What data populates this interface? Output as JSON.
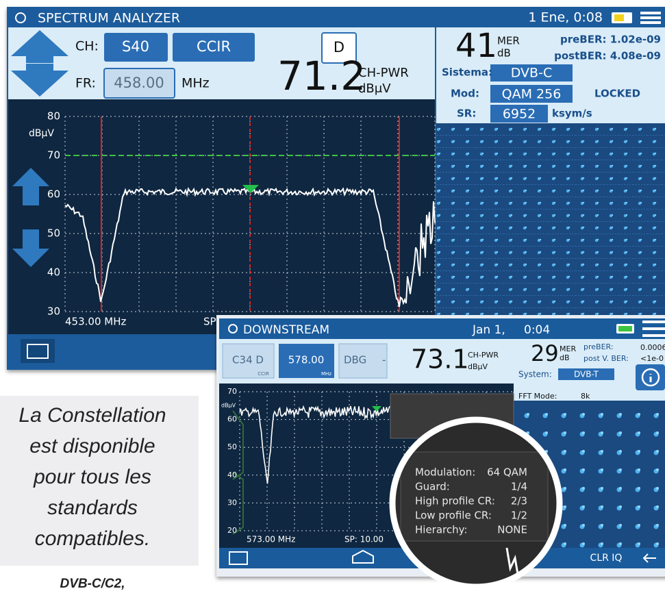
{
  "screen1": {
    "title": "SPECTRUM ANALYZER",
    "datetime": "1 Ene, 0:08",
    "ch_label": "CH:",
    "ch": "S40",
    "plan": "CCIR",
    "fr_label": "FR:",
    "fr": "458.00",
    "fr_unit": "MHz",
    "d": "D",
    "ch_pwr": "71.2",
    "ch_pwr_label": "CH-PWR",
    "ch_pwr_unit": "dBμV",
    "mer": "41",
    "mer_label": "MER",
    "mer_unit": "dB",
    "preber": "preBER: 1.02e-09",
    "postber": "postBER: 4.08e-09",
    "sistema_label": "Sistema:",
    "sistema": "DVB-C",
    "mod_label": "Mod:",
    "mod": "QAM 256",
    "locked": "LOCKED",
    "sr_label": "SR:",
    "sr": "6952",
    "sr_unit": "ksym/s",
    "y_unit": "dBμV",
    "yticks": [
      "80",
      "70",
      "60",
      "50",
      "40",
      "30"
    ],
    "start": "453.00 MHz",
    "sp": "SP"
  },
  "screen2": {
    "title": "DOWNSTREAM",
    "date": "Jan 1,",
    "time": "0:04",
    "ch": "C34 D",
    "ch_sub": "CCIR",
    "fr": "578.00",
    "fr_unit": "MHz",
    "dbg": "DBG",
    "dbg_value": "-",
    "ch_pwr": "73.1",
    "ch_pwr_label": "CH-PWR",
    "ch_pwr_unit": "dBμV",
    "mer": "29",
    "mer_label": "MER",
    "mer_unit": "dB",
    "preber_label": "preBER:",
    "preber": "0.0006",
    "postber_label": "post V. BER:",
    "postber": "<1e-0",
    "system_label": "System:",
    "system": "DVB-T",
    "fft_label": "FFT Mode:",
    "fft": "8k",
    "y_unit": "dBμV",
    "yticks": [
      "70",
      "60",
      "50",
      "40",
      "30",
      "20"
    ],
    "start": "573.00 MHz",
    "sp": "SP: 10.00",
    "clr_iq": "CLR IQ",
    "details": [
      {
        "label": "Modulation:",
        "value": "64 QAM"
      },
      {
        "label": "Guard:",
        "value": "1/4"
      },
      {
        "label": "High profile CR:",
        "value": "2/3"
      },
      {
        "label": "Low profile CR:",
        "value": "1/2"
      },
      {
        "label": "Hierarchy:",
        "value": "NONE"
      }
    ]
  },
  "caption": {
    "lines": [
      "La Constellation",
      "est disponible",
      "pour tous les",
      "standards",
      "compatibles."
    ],
    "footer": "DVB-C/C2,"
  }
}
